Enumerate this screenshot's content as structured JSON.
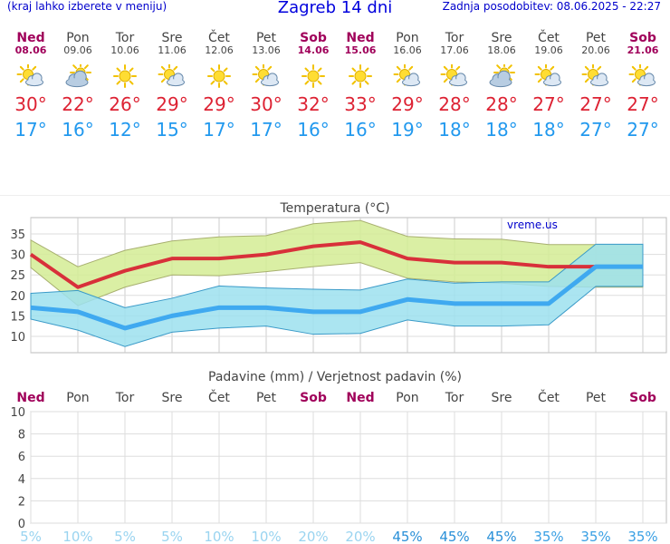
{
  "header": {
    "hint": "(kraj lahko izberete v meniju)",
    "title": "Zagreb 14 dni",
    "updated": "Zadnja posodobitev: 08.06.2025 - 22:27"
  },
  "days": [
    {
      "name": "Ned",
      "date": "08.06",
      "weekend": true,
      "icon": "partly-cloudy-icon",
      "max": "30°",
      "min": "17°"
    },
    {
      "name": "Pon",
      "date": "09.06",
      "weekend": false,
      "icon": "cloudy-icon",
      "max": "22°",
      "min": "16°"
    },
    {
      "name": "Tor",
      "date": "10.06",
      "weekend": false,
      "icon": "sun-icon",
      "max": "26°",
      "min": "12°"
    },
    {
      "name": "Sre",
      "date": "11.06",
      "weekend": false,
      "icon": "partly-cloudy-icon",
      "max": "29°",
      "min": "15°"
    },
    {
      "name": "Čet",
      "date": "12.06",
      "weekend": false,
      "icon": "sun-icon",
      "max": "29°",
      "min": "17°"
    },
    {
      "name": "Pet",
      "date": "13.06",
      "weekend": false,
      "icon": "partly-cloudy-icon",
      "max": "30°",
      "min": "17°"
    },
    {
      "name": "Sob",
      "date": "14.06",
      "weekend": true,
      "icon": "sun-icon",
      "max": "32°",
      "min": "16°"
    },
    {
      "name": "Ned",
      "date": "15.06",
      "weekend": true,
      "icon": "sun-icon",
      "max": "33°",
      "min": "16°"
    },
    {
      "name": "Pon",
      "date": "16.06",
      "weekend": false,
      "icon": "partly-cloudy-icon",
      "max": "29°",
      "min": "19°"
    },
    {
      "name": "Tor",
      "date": "17.06",
      "weekend": false,
      "icon": "partly-cloudy-icon",
      "max": "28°",
      "min": "18°"
    },
    {
      "name": "Sre",
      "date": "18.06",
      "weekend": false,
      "icon": "cloudy-icon",
      "max": "28°",
      "min": "18°"
    },
    {
      "name": "Čet",
      "date": "19.06",
      "weekend": false,
      "icon": "partly-cloudy-icon",
      "max": "27°",
      "min": "18°"
    },
    {
      "name": "Pet",
      "date": "20.06",
      "weekend": false,
      "icon": "partly-cloudy-icon",
      "max": "27°",
      "min": "27°"
    },
    {
      "name": "Sob",
      "date": "21.06",
      "weekend": true,
      "icon": "partly-cloudy-icon",
      "max": "27°",
      "min": "27°"
    }
  ],
  "colors": {
    "max_line": "#d8303a",
    "max_band": "#d4ec94",
    "min_line": "#3fa9f0",
    "min_band": "#9ce0ee",
    "overlap": "#8fd470",
    "weekend": "#a0005a",
    "precip_low": "#9ad4f0",
    "precip_high": "#2a90d8"
  },
  "chart_data": [
    {
      "type": "line",
      "title": "Temperatura (°C)",
      "watermark": "vreme.us",
      "ylim": [
        6,
        39
      ],
      "yticks": [
        10,
        15,
        20,
        25,
        30,
        35
      ],
      "grid": true,
      "series": [
        {
          "values": [
            30,
            22,
            26,
            29,
            29,
            30,
            32,
            33,
            29,
            28,
            28,
            27,
            27,
            27
          ],
          "band_high": [
            33.5,
            27,
            31,
            33.3,
            34.3,
            34.6,
            37.5,
            38.3,
            34.4,
            33.8,
            33.7,
            32.4,
            32.4,
            32.4
          ],
          "band_low": [
            26.8,
            17.5,
            22,
            25,
            24.8,
            25.8,
            27,
            28,
            24.2,
            23.3,
            23,
            22.2,
            22,
            22
          ]
        },
        {
          "values": [
            17,
            16,
            12,
            15,
            17,
            17,
            16,
            16,
            19,
            18,
            18,
            18,
            27,
            27
          ],
          "band_high": [
            20.5,
            21.2,
            17,
            19.3,
            22.3,
            21.8,
            21.5,
            21.3,
            24,
            23,
            23.3,
            23.3,
            32.5,
            32.5
          ],
          "band_low": [
            14.2,
            11.5,
            7.5,
            11,
            12,
            12.5,
            10.5,
            10.7,
            14,
            12.5,
            12.5,
            12.8,
            22.2,
            22.2
          ]
        }
      ]
    },
    {
      "type": "bar",
      "title": "Padavine (mm) / Verjetnost padavin (%)",
      "categories": [
        "Ned",
        "Pon",
        "Tor",
        "Sre",
        "Čet",
        "Pet",
        "Sob",
        "Ned",
        "Pon",
        "Tor",
        "Sre",
        "Čet",
        "Pet",
        "Sob"
      ],
      "weekend": [
        true,
        false,
        false,
        false,
        false,
        false,
        true,
        true,
        false,
        false,
        false,
        false,
        false,
        true
      ],
      "values": [
        0,
        0,
        0,
        0,
        0,
        0,
        0,
        0,
        0,
        0,
        0,
        0,
        0,
        0
      ],
      "probability": [
        "5%",
        "10%",
        "5%",
        "5%",
        "10%",
        "10%",
        "20%",
        "20%",
        "45%",
        "45%",
        "45%",
        "35%",
        "35%",
        "35%"
      ],
      "probability_values": [
        5,
        10,
        5,
        5,
        10,
        10,
        20,
        20,
        45,
        45,
        45,
        35,
        35,
        35
      ],
      "ylim": [
        0,
        10
      ],
      "yticks": [
        0,
        2,
        4,
        6,
        8,
        10
      ],
      "grid": true
    }
  ]
}
